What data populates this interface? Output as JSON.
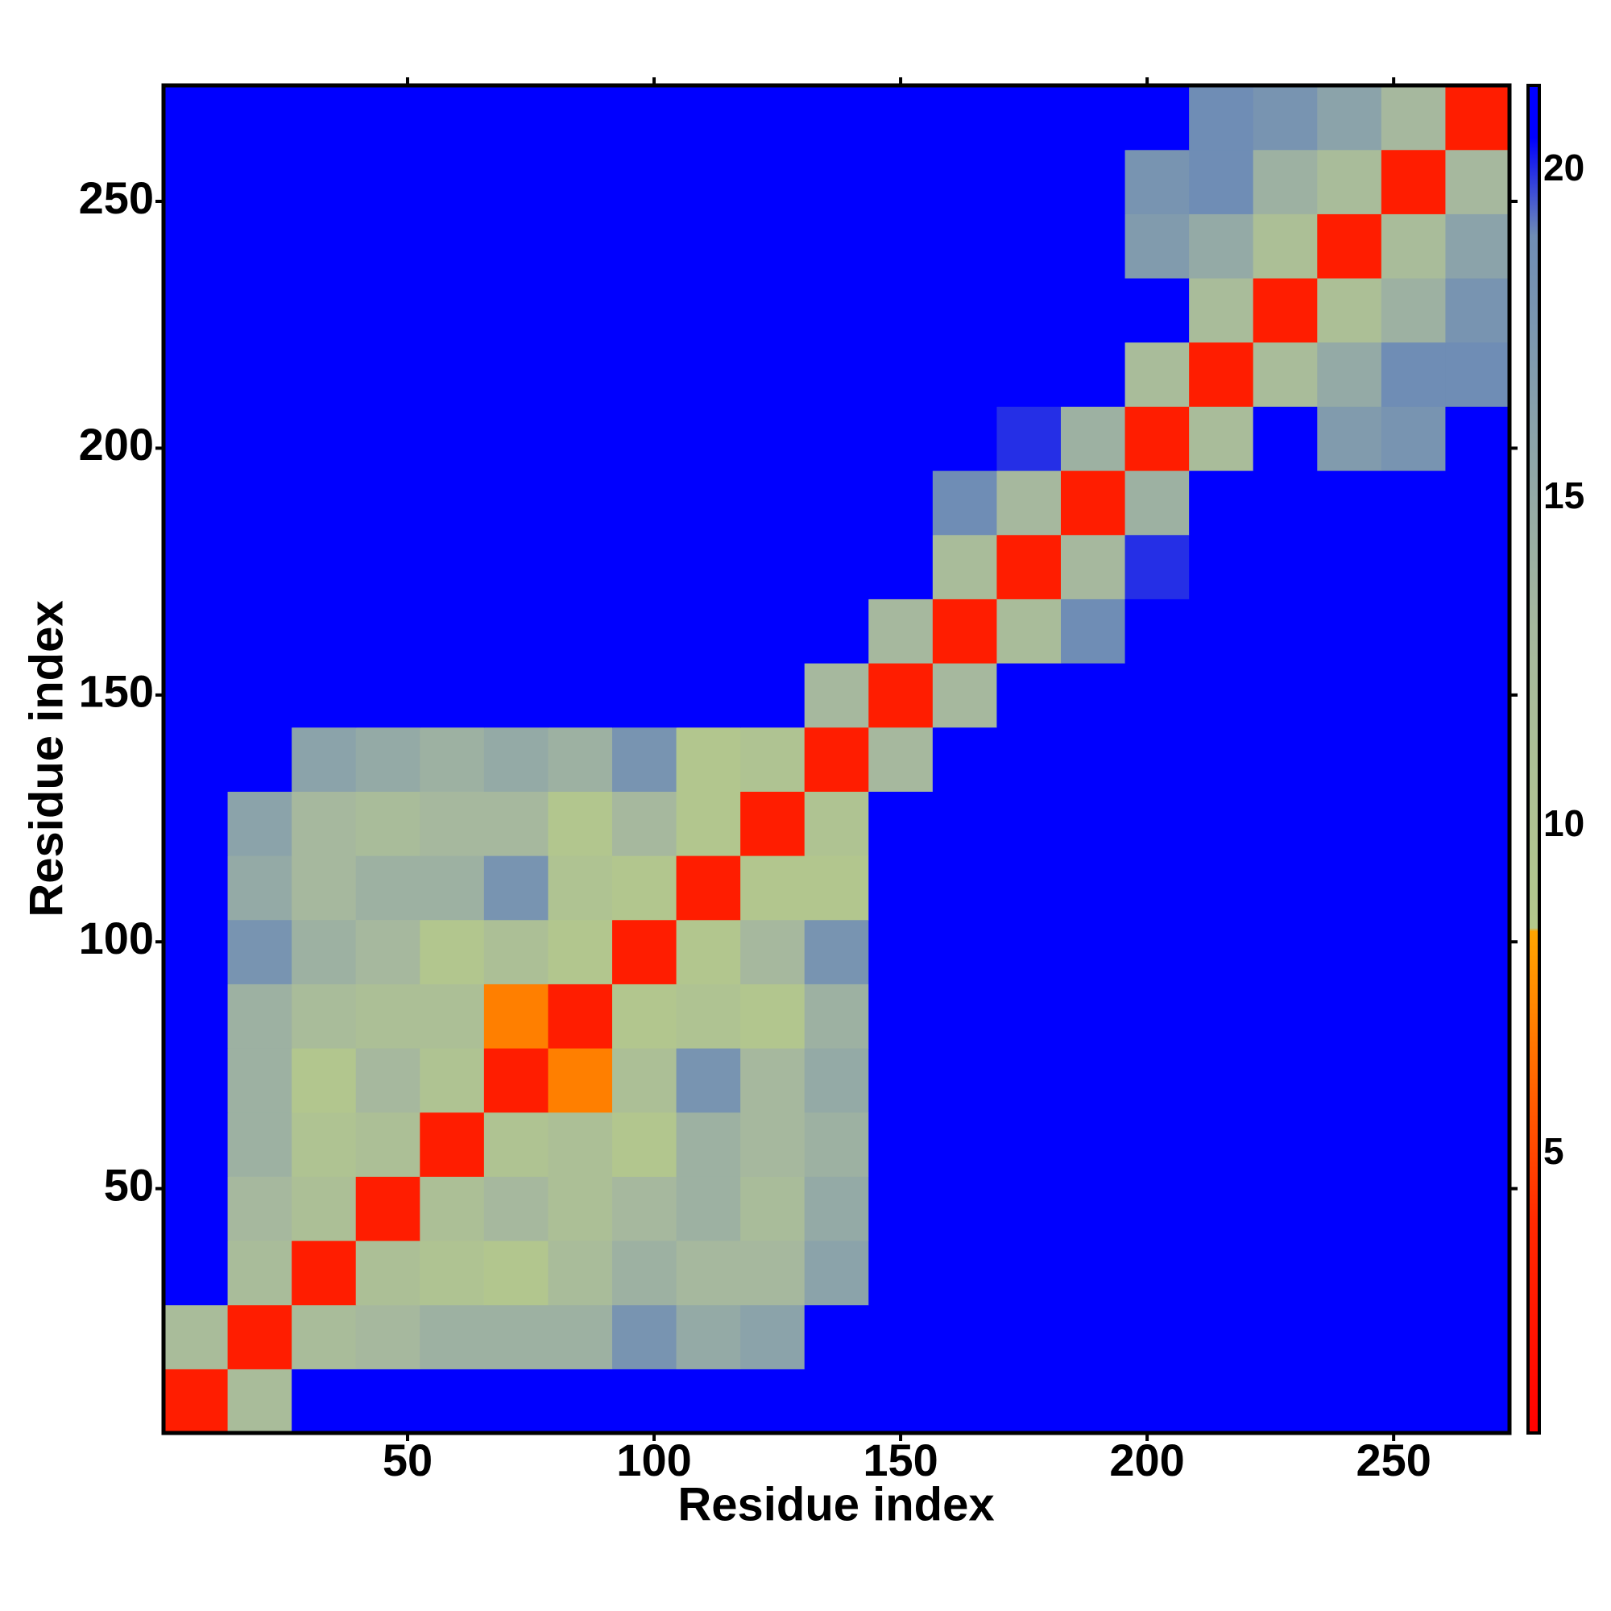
{
  "chart_data": {
    "type": "heatmap",
    "xlabel": "Residue index",
    "ylabel": "Residue index",
    "xlim": [
      0.5,
      273.5
    ],
    "ylim": [
      0.5,
      273.5
    ],
    "xticks": [
      50,
      100,
      150,
      200,
      250
    ],
    "yticks": [
      50,
      100,
      150,
      200,
      250
    ],
    "x": [
      7,
      20,
      33,
      46,
      59,
      72,
      85,
      98,
      111,
      124,
      137,
      150,
      163,
      176,
      189,
      202,
      215,
      228,
      241,
      254,
      267
    ],
    "y": [
      7,
      20,
      33,
      46,
      59,
      72,
      85,
      98,
      111,
      124,
      137,
      150,
      163,
      176,
      189,
      202,
      215,
      228,
      241,
      254,
      267
    ],
    "z": [
      [
        3,
        12,
        21,
        21,
        21,
        21,
        21,
        21,
        21,
        21,
        21,
        21,
        21,
        21,
        21,
        21,
        21,
        21,
        21,
        21,
        21
      ],
      [
        12,
        3,
        12,
        13,
        14,
        14,
        14,
        18,
        15,
        16,
        21,
        21,
        21,
        21,
        21,
        21,
        21,
        21,
        21,
        21,
        21
      ],
      [
        21,
        12,
        3,
        11,
        10,
        9,
        12,
        14,
        13,
        13,
        16,
        21,
        21,
        21,
        21,
        21,
        21,
        21,
        21,
        21,
        21
      ],
      [
        21,
        13,
        11,
        3,
        11,
        13,
        11,
        13,
        14,
        12,
        15,
        21,
        21,
        21,
        21,
        21,
        21,
        21,
        21,
        21,
        21
      ],
      [
        21,
        14,
        10,
        11,
        3,
        10,
        11,
        9,
        14,
        13,
        14,
        21,
        21,
        21,
        21,
        21,
        21,
        21,
        21,
        21,
        21
      ],
      [
        21,
        14,
        9,
        13,
        10,
        3,
        7,
        11,
        18,
        13,
        15,
        21,
        21,
        21,
        21,
        21,
        21,
        21,
        21,
        21,
        21
      ],
      [
        21,
        14,
        12,
        11,
        11,
        7,
        3,
        9,
        10,
        9,
        14,
        21,
        21,
        21,
        21,
        21,
        21,
        21,
        21,
        21,
        21
      ],
      [
        21,
        18,
        14,
        13,
        9,
        11,
        9,
        3,
        9,
        13,
        18,
        21,
        21,
        21,
        21,
        21,
        21,
        21,
        21,
        21,
        21
      ],
      [
        21,
        15,
        13,
        14,
        14,
        18,
        10,
        9,
        3,
        9,
        9,
        21,
        21,
        21,
        21,
        21,
        21,
        21,
        21,
        21,
        21
      ],
      [
        21,
        16,
        13,
        12,
        13,
        13,
        9,
        13,
        9,
        3,
        10,
        21,
        21,
        21,
        21,
        21,
        21,
        21,
        21,
        21,
        21
      ],
      [
        21,
        21,
        16,
        15,
        14,
        15,
        14,
        18,
        9,
        10,
        3,
        13,
        21,
        21,
        21,
        21,
        21,
        21,
        21,
        21,
        21
      ],
      [
        21,
        21,
        21,
        21,
        21,
        21,
        21,
        21,
        21,
        21,
        13,
        3,
        13,
        21,
        21,
        21,
        21,
        21,
        21,
        21,
        21
      ],
      [
        21,
        21,
        21,
        21,
        21,
        21,
        21,
        21,
        21,
        21,
        21,
        13,
        3,
        12,
        19,
        21,
        21,
        21,
        21,
        21,
        21
      ],
      [
        21,
        21,
        21,
        21,
        21,
        21,
        21,
        21,
        21,
        21,
        21,
        21,
        12,
        3,
        13,
        20,
        21,
        21,
        21,
        21,
        21
      ],
      [
        21,
        21,
        21,
        21,
        21,
        21,
        21,
        21,
        21,
        21,
        21,
        21,
        19,
        13,
        3,
        14,
        21,
        21,
        21,
        21,
        21
      ],
      [
        21,
        21,
        21,
        21,
        21,
        21,
        21,
        21,
        21,
        21,
        21,
        21,
        21,
        20,
        14,
        3,
        12,
        21,
        17,
        18,
        21
      ],
      [
        21,
        21,
        21,
        21,
        21,
        21,
        21,
        21,
        21,
        21,
        21,
        21,
        21,
        21,
        21,
        12,
        3,
        12,
        15,
        19,
        19
      ],
      [
        21,
        21,
        21,
        21,
        21,
        21,
        21,
        21,
        21,
        21,
        21,
        21,
        21,
        21,
        21,
        21,
        12,
        3,
        11,
        14,
        18
      ],
      [
        21,
        21,
        21,
        21,
        21,
        21,
        21,
        21,
        21,
        21,
        21,
        21,
        21,
        21,
        21,
        17,
        15,
        11,
        3,
        12,
        16
      ],
      [
        21,
        21,
        21,
        21,
        21,
        21,
        21,
        21,
        21,
        21,
        21,
        21,
        21,
        21,
        21,
        18,
        19,
        14,
        12,
        3,
        13
      ],
      [
        21,
        21,
        21,
        21,
        21,
        21,
        21,
        21,
        21,
        21,
        21,
        21,
        21,
        21,
        21,
        21,
        19,
        18,
        16,
        13,
        3
      ]
    ],
    "clim": [
      0.75,
      21.3
    ],
    "cticks": [
      5,
      10,
      15,
      20
    ],
    "colorscale": [
      [
        0.75,
        "#ff0000"
      ],
      [
        4,
        "#ff2a00"
      ],
      [
        7,
        "#ff7f00"
      ],
      [
        8.4,
        "#ffa500"
      ],
      [
        8.45,
        "#b4c88c"
      ],
      [
        13,
        "#a6b89e"
      ],
      [
        19,
        "#6f8db5"
      ],
      [
        20.5,
        "#0000ff"
      ],
      [
        21.3,
        "#0000ff"
      ]
    ]
  }
}
